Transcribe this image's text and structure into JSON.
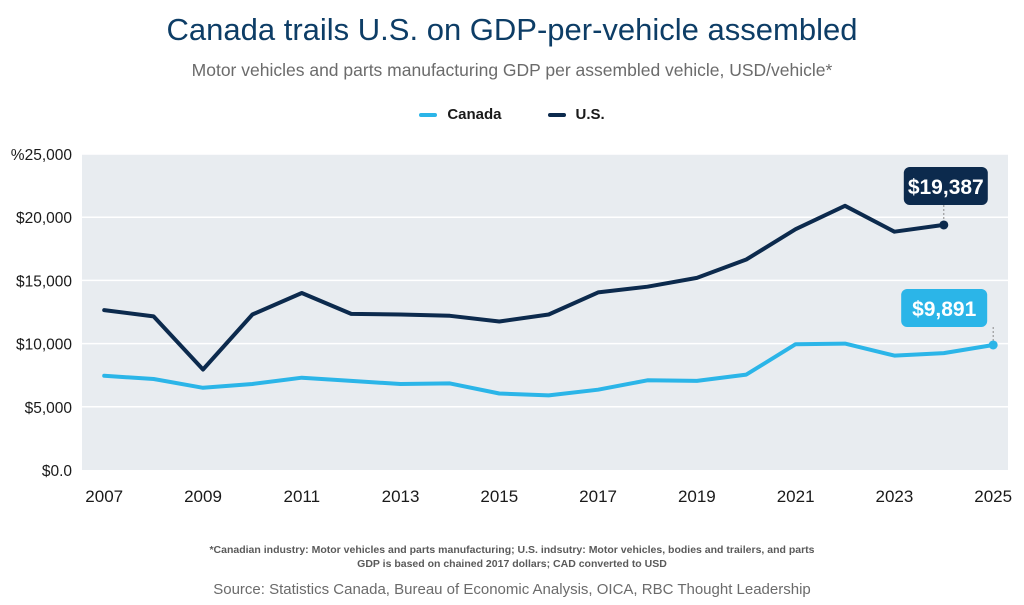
{
  "title": "Canada trails U.S. on GDP-per-vehicle assembled",
  "subtitle": "Motor vehicles and parts manufacturing GDP per assembled vehicle, USD/vehicle*",
  "footnote_line1": "*Canadian industry: Motor vehicles and parts manufacturing; U.S. indsutry: Motor vehicles, bodies and trailers, and parts",
  "footnote_line2": "GDP is based on chained 2017 dollars; CAD converted to USD",
  "source": "Source: Statistics Canada, Bureau of Economic Analysis, OICA, RBC Thought Leadership",
  "colors": {
    "canada": "#2bb5e8",
    "us": "#0c2a4d",
    "plot_bg": "#e8ecf0",
    "grid": "#ffffff"
  },
  "chart_data": {
    "type": "line",
    "x": [
      2007,
      2008,
      2009,
      2010,
      2011,
      2012,
      2013,
      2014,
      2015,
      2016,
      2017,
      2018,
      2019,
      2020,
      2021,
      2022,
      2023,
      2024,
      2025
    ],
    "xticks": [
      2007,
      2009,
      2011,
      2013,
      2015,
      2017,
      2019,
      2021,
      2023,
      2025
    ],
    "xlim": [
      2006.55,
      2025.3
    ],
    "ylim": [
      0,
      25000
    ],
    "yticks": [
      0,
      5000,
      10000,
      15000,
      20000,
      25000
    ],
    "ytick_labels": [
      "$0.0",
      "$5,000",
      "$10,000",
      "$15,000",
      "$20,000",
      "%25,000"
    ],
    "grid": true,
    "legend_position": "top-center",
    "series": [
      {
        "name": "Canada",
        "x": [
          2007,
          2008,
          2009,
          2010,
          2011,
          2012,
          2013,
          2014,
          2015,
          2016,
          2017,
          2018,
          2019,
          2020,
          2021,
          2022,
          2023,
          2024,
          2025
        ],
        "values": [
          7450,
          7200,
          6500,
          6800,
          7300,
          7050,
          6800,
          6850,
          6050,
          5900,
          6350,
          7100,
          7050,
          7550,
          9950,
          10000,
          9050,
          9250,
          9891
        ],
        "end_label": "$9,891"
      },
      {
        "name": "U.S.",
        "x": [
          2007,
          2008,
          2009,
          2010,
          2011,
          2012,
          2013,
          2014,
          2015,
          2016,
          2017,
          2018,
          2019,
          2020,
          2021,
          2022,
          2023,
          2024
        ],
        "values": [
          12650,
          12150,
          7950,
          12300,
          14000,
          12350,
          12300,
          12200,
          11750,
          12300,
          14050,
          14500,
          15200,
          16650,
          19050,
          20900,
          18850,
          19387
        ],
        "end_label": "$19,387"
      }
    ]
  }
}
